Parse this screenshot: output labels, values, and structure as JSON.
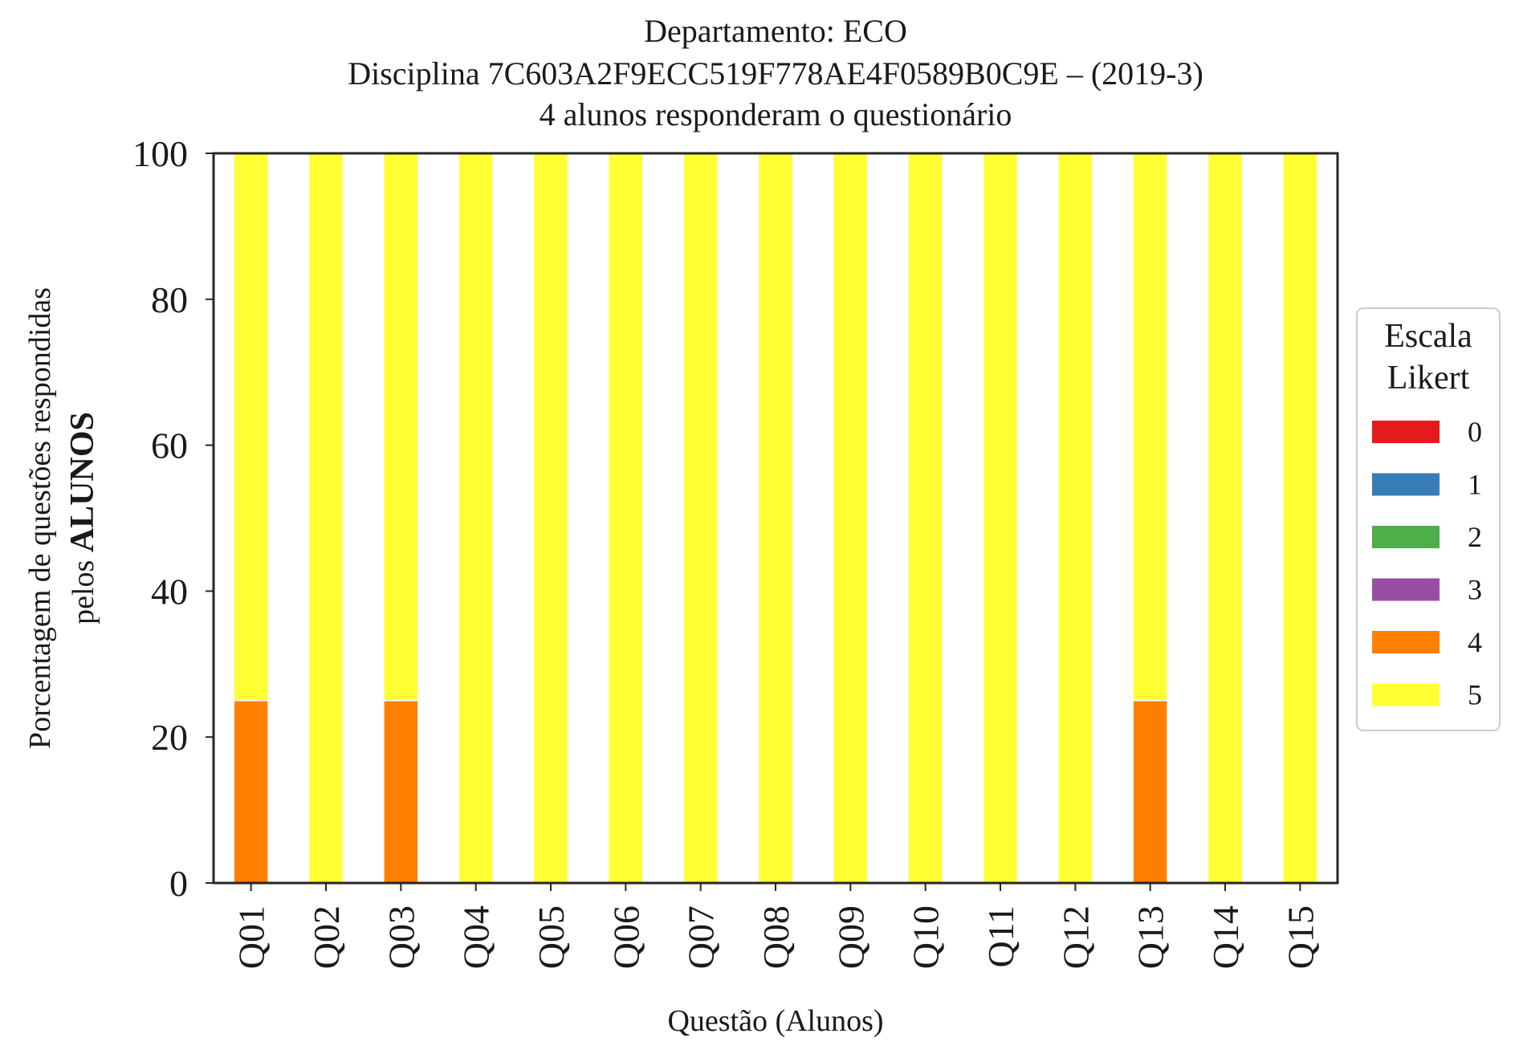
{
  "chart_data": {
    "type": "bar",
    "stacked": true,
    "title_lines": [
      "Departamento: ECO",
      "Disciplina 7C603A2F9ECC519F778AE4F0589B0C9E – (2019-3)",
      "4 alunos responderam o questionário"
    ],
    "xlabel": "Questão (Alunos)",
    "ylabel_line1": "Porcentagem de questões respondidas",
    "ylabel_line2_prefix": "pelos ",
    "ylabel_line2_bold": "ALUNOS",
    "ylim": [
      0,
      100
    ],
    "yticks": [
      "0",
      "20",
      "40",
      "60",
      "80",
      "100"
    ],
    "categories": [
      "Q01",
      "Q02",
      "Q03",
      "Q04",
      "Q05",
      "Q06",
      "Q07",
      "Q08",
      "Q09",
      "Q10",
      "Q11",
      "Q12",
      "Q13",
      "Q14",
      "Q15"
    ],
    "legend": {
      "title_lines": [
        "Escala",
        "Likert"
      ],
      "position": "right"
    },
    "series": [
      {
        "name": "0",
        "color": "#e41a1c",
        "values": [
          0,
          0,
          0,
          0,
          0,
          0,
          0,
          0,
          0,
          0,
          0,
          0,
          0,
          0,
          0
        ]
      },
      {
        "name": "1",
        "color": "#377eb8",
        "values": [
          0,
          0,
          0,
          0,
          0,
          0,
          0,
          0,
          0,
          0,
          0,
          0,
          0,
          0,
          0
        ]
      },
      {
        "name": "2",
        "color": "#4daf4a",
        "values": [
          0,
          0,
          0,
          0,
          0,
          0,
          0,
          0,
          0,
          0,
          0,
          0,
          0,
          0,
          0
        ]
      },
      {
        "name": "3",
        "color": "#984ea3",
        "values": [
          0,
          0,
          0,
          0,
          0,
          0,
          0,
          0,
          0,
          0,
          0,
          0,
          0,
          0,
          0
        ]
      },
      {
        "name": "4",
        "color": "#ff7f00",
        "values": [
          25,
          0,
          25,
          0,
          0,
          0,
          0,
          0,
          0,
          0,
          0,
          0,
          25,
          0,
          0
        ]
      },
      {
        "name": "5",
        "color": "#ffff33",
        "values": [
          75,
          100,
          75,
          100,
          100,
          100,
          100,
          100,
          100,
          100,
          100,
          100,
          75,
          100,
          100
        ]
      }
    ],
    "grid": false
  }
}
